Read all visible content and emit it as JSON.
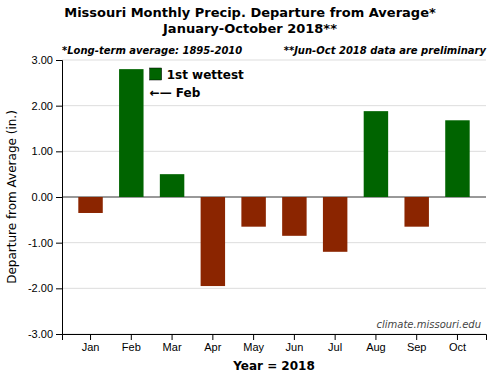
{
  "chart_data": {
    "type": "bar",
    "title": "Missouri Monthly Precip. Departure from Average*",
    "subtitle": "January-October 2018**",
    "categories": [
      "Jan",
      "Feb",
      "Mar",
      "Apr",
      "May",
      "Jun",
      "Jul",
      "Aug",
      "Sep",
      "Oct"
    ],
    "values": [
      -0.35,
      2.8,
      0.5,
      -1.95,
      -0.65,
      -0.85,
      -1.2,
      1.88,
      -0.65,
      1.68
    ],
    "colors": [
      "#8B2500",
      "#006400",
      "#006400",
      "#8B2500",
      "#8B2500",
      "#8B2500",
      "#8B2500",
      "#006400",
      "#8B2500",
      "#006400"
    ],
    "xlabel": "Year = 2018",
    "ylabel": "Departure from Average (in.)",
    "ylim": [
      -3.0,
      3.0
    ],
    "yticks": [
      {
        "value": -3,
        "label": "-3.00"
      },
      {
        "value": -2,
        "label": "-2.00"
      },
      {
        "value": -1,
        "label": "-1.00"
      },
      {
        "value": 0,
        "label": "0.00"
      },
      {
        "value": 1,
        "label": "1.00"
      },
      {
        "value": 2,
        "label": "2.00"
      },
      {
        "value": 3,
        "label": "3.00"
      }
    ],
    "grid": true,
    "annotations": [
      "*Long-term average: 1895-2010",
      "**Jun-Oct 2018 data are preliminary",
      "1st wettest",
      "←— Feb",
      "climate.missouri.edu"
    ]
  }
}
